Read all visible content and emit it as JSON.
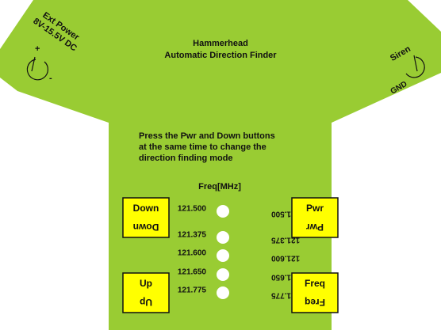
{
  "header": {
    "title": "Hammerhead",
    "subtitle": "Automatic Direction Finder"
  },
  "power": {
    "lines": [
      "Ext Power",
      "8V-15.5V DC"
    ],
    "plus": "+",
    "minus": "-"
  },
  "siren": {
    "label": "Siren",
    "ground": "GND"
  },
  "instructions": [
    "Press the Pwr and Down buttons",
    "at the same time to change the",
    "direction finding mode"
  ],
  "frequency_label": "Freq[MHz]",
  "channels": [
    "121.500",
    "121.375",
    "121.600",
    "121.650",
    "121.775"
  ],
  "buttons": [
    "Down",
    "Pwr",
    "Up",
    "Freq"
  ]
}
